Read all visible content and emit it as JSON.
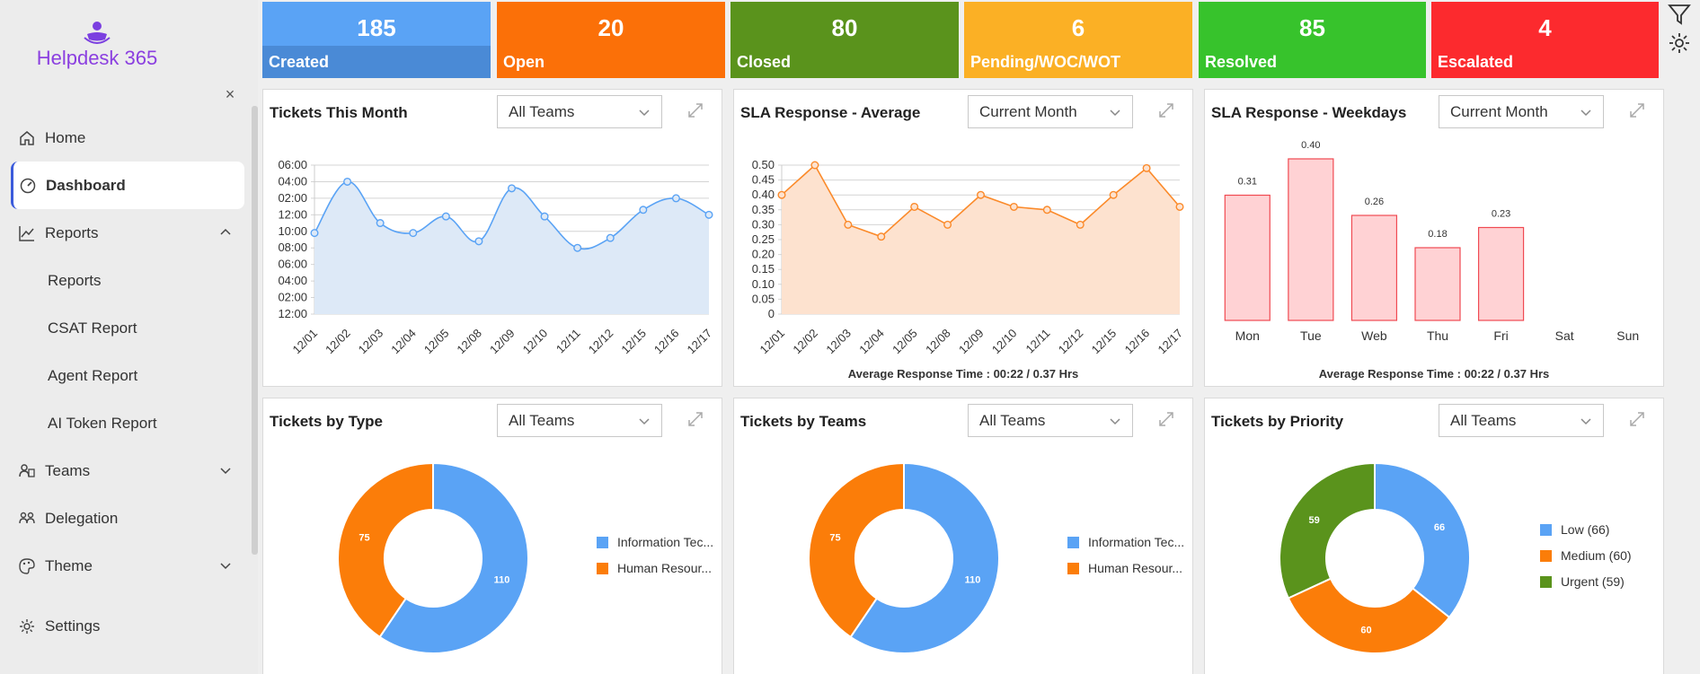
{
  "app": {
    "name": "Helpdesk 365",
    "close_label": "×"
  },
  "sidebar": {
    "items": [
      {
        "label": "Home",
        "icon": "home-icon"
      },
      {
        "label": "Dashboard",
        "icon": "gauge-icon",
        "active": true
      },
      {
        "label": "Reports",
        "icon": "line-chart-icon",
        "expanded": true
      },
      {
        "label": "Reports",
        "sub": true
      },
      {
        "label": "CSAT Report",
        "sub": true
      },
      {
        "label": "Agent Report",
        "sub": true
      },
      {
        "label": "AI Token Report",
        "sub": true
      },
      {
        "label": "Teams",
        "icon": "teams-icon"
      },
      {
        "label": "Delegation",
        "icon": "delegation-icon"
      },
      {
        "label": "Theme",
        "icon": "palette-icon"
      },
      {
        "label": "Settings",
        "icon": "gear-icon"
      }
    ]
  },
  "tiles": [
    {
      "value": "185",
      "label": "Created",
      "color": "#5aa3f5",
      "label_bg": "#4a8ad6"
    },
    {
      "value": "20",
      "label": "Open",
      "color": "#fb7008",
      "label_bg": "#fb7008"
    },
    {
      "value": "80",
      "label": "Closed",
      "color": "#5a931c",
      "label_bg": "#5a931c"
    },
    {
      "value": "6",
      "label": "Pending/WOC/WOT",
      "color": "#fbb025",
      "label_bg": "#fbb025"
    },
    {
      "value": "85",
      "label": "Resolved",
      "color": "#37c32c",
      "label_bg": "#37c32c"
    },
    {
      "value": "4",
      "label": "Escalated",
      "color": "#fc2a2e",
      "label_bg": "#fc2a2e"
    }
  ],
  "cards": {
    "tickets_month": {
      "title": "Tickets This Month",
      "filter": "All Teams"
    },
    "sla_avg": {
      "title": "SLA Response - Average",
      "filter": "Current Month",
      "footer": "Average Response Time : 00:22 / 0.37 Hrs"
    },
    "sla_weekdays": {
      "title": "SLA Response - Weekdays",
      "filter": "Current Month",
      "footer": "Average Response Time : 00:22 / 0.37 Hrs"
    },
    "by_type": {
      "title": "Tickets by Type",
      "filter": "All Teams"
    },
    "by_teams": {
      "title": "Tickets by Teams",
      "filter": "All Teams"
    },
    "by_priority": {
      "title": "Tickets by Priority",
      "filter": "All Teams"
    }
  },
  "chart_data": [
    {
      "type": "area",
      "title": "Tickets This Month",
      "categories": [
        "12/01",
        "12/02",
        "12/03",
        "12/04",
        "12/05",
        "12/08",
        "12/09",
        "12/10",
        "12/11",
        "12/12",
        "12/15",
        "12/16",
        "12/17"
      ],
      "y_tick_labels": [
        "06:00",
        "04:00",
        "02:00",
        "12:00",
        "10:00",
        "08:00",
        "06:00",
        "04:00",
        "02:00",
        "12:00"
      ],
      "values": [
        4.9,
        8.0,
        5.5,
        4.9,
        5.9,
        4.4,
        7.6,
        5.9,
        4.0,
        4.6,
        6.3,
        7.0,
        6.0
      ],
      "ylim": [
        0,
        9
      ],
      "color": "#5aa3f5",
      "grid": true
    },
    {
      "type": "area",
      "title": "SLA Response - Average",
      "categories": [
        "12/01",
        "12/02",
        "12/03",
        "12/04",
        "12/05",
        "12/08",
        "12/09",
        "12/10",
        "12/11",
        "12/12",
        "12/15",
        "12/16",
        "12/17"
      ],
      "y_tick_labels": [
        "0.50",
        "0.45",
        "0.40",
        "0.35",
        "0.30",
        "0.25",
        "0.20",
        "0.15",
        "0.10",
        "0.05",
        "0"
      ],
      "values": [
        0.4,
        0.5,
        0.3,
        0.26,
        0.36,
        0.3,
        0.4,
        0.36,
        0.35,
        0.3,
        0.4,
        0.49,
        0.36
      ],
      "ylim": [
        0,
        0.5
      ],
      "color": "#fb8a2a",
      "grid": true
    },
    {
      "type": "bar",
      "title": "SLA Response - Weekdays",
      "categories": [
        "Mon",
        "Tue",
        "Web",
        "Thu",
        "Fri",
        "Sat",
        "Sun"
      ],
      "values": [
        0.31,
        0.4,
        0.26,
        0.18,
        0.23,
        null,
        null
      ],
      "data_labels": [
        "0.31",
        "0.40",
        "0.26",
        "0.18",
        "0.23",
        "",
        ""
      ],
      "ylim": [
        0,
        0.42
      ],
      "color": "#ffd2d4",
      "stroke": "#f04a52"
    },
    {
      "type": "pie",
      "title": "Tickets by Type",
      "slices": [
        {
          "label": "Information Tec...",
          "value": 110,
          "color": "#5aa3f5"
        },
        {
          "label": "Human Resour...",
          "value": 75,
          "color": "#fb7d09"
        }
      ]
    },
    {
      "type": "pie",
      "title": "Tickets by Teams",
      "slices": [
        {
          "label": "Information Tec...",
          "value": 110,
          "color": "#5aa3f5"
        },
        {
          "label": "Human Resour...",
          "value": 75,
          "color": "#fb7d09"
        }
      ]
    },
    {
      "type": "pie",
      "title": "Tickets by Priority",
      "slices": [
        {
          "label": "Low (66)",
          "value": 66,
          "color": "#5aa3f5"
        },
        {
          "label": "Medium (60)",
          "value": 60,
          "color": "#fb7d09"
        },
        {
          "label": "Urgent (59)",
          "value": 59,
          "color": "#5a931c"
        }
      ]
    }
  ]
}
